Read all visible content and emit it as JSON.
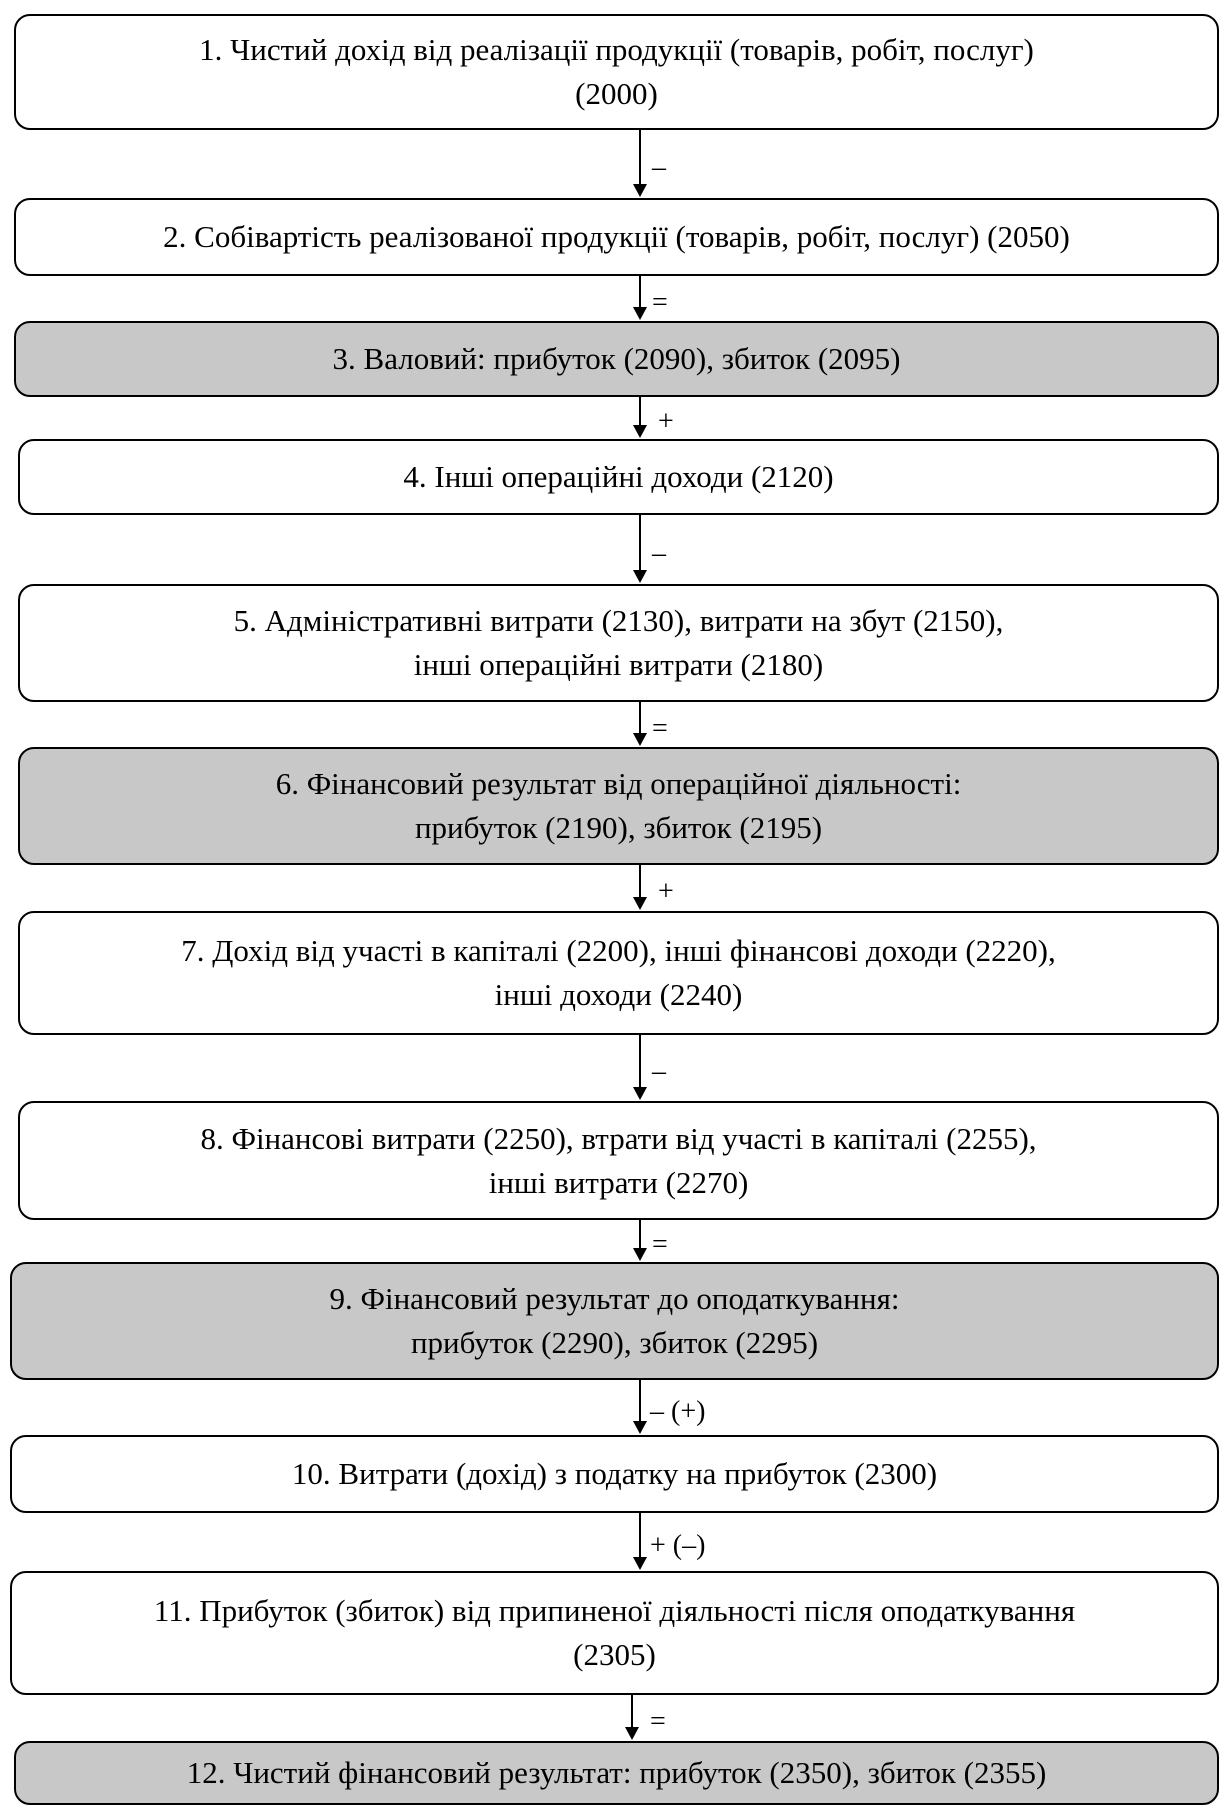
{
  "boxes": [
    {
      "lines": [
        "1. Чистий дохід від реалізації продукції (товарів, робіт, послуг)",
        "(2000)"
      ],
      "shaded": false
    },
    {
      "lines": [
        "2. Собівартість реалізованої продукції (товарів, робіт, послуг) (2050)"
      ],
      "shaded": false
    },
    {
      "lines": [
        "3. Валовий: прибуток (2090), збиток (2095)"
      ],
      "shaded": true
    },
    {
      "lines": [
        "4. Інші операційні доходи (2120)"
      ],
      "shaded": false
    },
    {
      "lines": [
        "5. Адміністративні витрати (2130), витрати на збут (2150),",
        "інші операційні витрати (2180)"
      ],
      "shaded": false
    },
    {
      "lines": [
        "6. Фінансовий результат від операційної діяльності:",
        "прибуток (2190), збиток (2195)"
      ],
      "shaded": true
    },
    {
      "lines": [
        "7. Дохід від участі в капіталі (2200), інші фінансові доходи (2220),",
        "інші доходи (2240)"
      ],
      "shaded": false
    },
    {
      "lines": [
        "8. Фінансові витрати (2250), втрати від участі в капіталі (2255),",
        "інші витрати (2270)"
      ],
      "shaded": false
    },
    {
      "lines": [
        "9. Фінансовий результат до оподаткування:",
        "прибуток (2290), збиток (2295)"
      ],
      "shaded": true
    },
    {
      "lines": [
        "10. Витрати (дохід) з податку на прибуток (2300)"
      ],
      "shaded": false
    },
    {
      "lines": [
        "11. Прибуток (збиток) від припиненої діяльності після оподаткування",
        "(2305)"
      ],
      "shaded": false
    },
    {
      "lines": [
        "12. Чистий фінансовий результат: прибуток (2350), збиток (2355)"
      ],
      "shaded": true
    }
  ],
  "operators": [
    "–",
    "=",
    "+",
    "–",
    "=",
    "+",
    "–",
    "=",
    "– (+)",
    "+ (–)",
    "="
  ]
}
